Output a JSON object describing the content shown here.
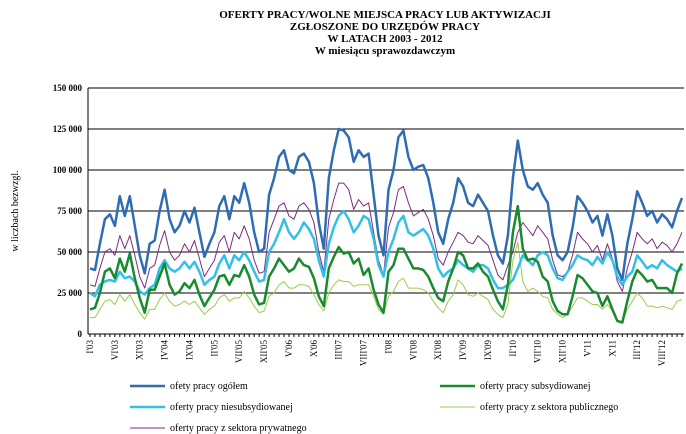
{
  "chart_data": {
    "type": "line",
    "title": [
      "OFERTY PRACY/WOLNE MIEJSCA PRACY LUB AKTYWIZACJI",
      "ZGŁOSZONE DO URZĘDÓW PRACY",
      "W LATACH 2003 - 2012",
      "W miesiącu sprawozdawczym"
    ],
    "y_label": "w liczbach bezwzgl.",
    "ylim": [
      0,
      150000
    ],
    "yticks": [
      0,
      {
        "value": 25000,
        "label": "25 000"
      },
      {
        "value": 50000,
        "label": "50 000"
      },
      {
        "value": 75000,
        "label": "75 000"
      },
      {
        "value": 100000,
        "label": "100 000"
      },
      {
        "value": 125000,
        "label": "125 000"
      },
      {
        "value": 150000,
        "label": "150 000"
      }
    ],
    "grid": true,
    "categories": [
      "I'03",
      null,
      null,
      null,
      null,
      "VI'03",
      null,
      null,
      null,
      null,
      "XI'03",
      null,
      null,
      null,
      null,
      "IV'04",
      null,
      null,
      null,
      null,
      "IX'04",
      null,
      null,
      null,
      null,
      "II'05",
      null,
      null,
      null,
      null,
      "VII'05",
      null,
      null,
      null,
      null,
      "XII'05",
      null,
      null,
      null,
      null,
      "V'06",
      null,
      null,
      null,
      null,
      "X'06",
      null,
      null,
      null,
      null,
      "III'07",
      null,
      null,
      null,
      null,
      "VIII'07",
      null,
      null,
      null,
      null,
      "I'08",
      null,
      null,
      null,
      null,
      "VI'08",
      null,
      null,
      null,
      null,
      "XI'08",
      null,
      null,
      null,
      null,
      "IV'09",
      null,
      null,
      null,
      null,
      "IX'09",
      null,
      null,
      null,
      null,
      "II'10",
      null,
      null,
      null,
      null,
      "VII'10",
      null,
      null,
      null,
      null,
      "XII'10",
      null,
      null,
      null,
      null,
      "V'11",
      null,
      null,
      null,
      null,
      "X'11",
      null,
      null,
      null,
      null,
      "III'12",
      null,
      null,
      null,
      null,
      "VIII'12",
      null,
      null,
      null,
      null
    ],
    "series": [
      {
        "name": "ofety pracy ogółem",
        "color": "#2e6db4",
        "width": 2.5,
        "values": [
          40000,
          39000,
          55000,
          70000,
          73000,
          66000,
          84000,
          72000,
          84000,
          66000,
          48000,
          37000,
          55000,
          57000,
          75000,
          88000,
          70000,
          62000,
          66000,
          75000,
          68000,
          77000,
          62000,
          47000,
          55000,
          62000,
          78000,
          84000,
          70000,
          84000,
          80000,
          92000,
          80000,
          62000,
          50000,
          52000,
          85000,
          95000,
          108000,
          112000,
          100000,
          98000,
          108000,
          110000,
          105000,
          92000,
          68000,
          52000,
          95000,
          112000,
          125000,
          124000,
          120000,
          105000,
          112000,
          108000,
          110000,
          85000,
          60000,
          48000,
          88000,
          100000,
          120000,
          124000,
          108000,
          100000,
          102000,
          103000,
          95000,
          80000,
          62000,
          55000,
          70000,
          80000,
          95000,
          90000,
          80000,
          78000,
          85000,
          80000,
          75000,
          60000,
          48000,
          43000,
          60000,
          95000,
          118000,
          100000,
          90000,
          88000,
          92000,
          85000,
          80000,
          60000,
          48000,
          45000,
          50000,
          65000,
          84000,
          80000,
          75000,
          68000,
          72000,
          60000,
          73000,
          60000,
          40000,
          33000,
          55000,
          70000,
          87000,
          80000,
          72000,
          75000,
          68000,
          73000,
          70000,
          65000,
          75000,
          83000
        ]
      },
      {
        "name": "oferty pracy subsydiowanej",
        "color": "#1a8a2e",
        "width": 2.5,
        "values": [
          15000,
          16000,
          25000,
          38000,
          40000,
          34000,
          46000,
          38000,
          49000,
          34000,
          22000,
          13000,
          27000,
          27000,
          35000,
          43000,
          30000,
          24000,
          26000,
          31000,
          28000,
          33000,
          24000,
          17000,
          22000,
          27000,
          35000,
          36000,
          30000,
          36000,
          35000,
          42000,
          35000,
          24000,
          18000,
          19000,
          35000,
          40000,
          46000,
          42000,
          38000,
          40000,
          46000,
          42000,
          41000,
          34000,
          23000,
          17000,
          40000,
          47000,
          53000,
          49000,
          50000,
          43000,
          46000,
          36000,
          40000,
          27000,
          18000,
          13000,
          38000,
          42000,
          52000,
          52000,
          46000,
          40000,
          40000,
          39000,
          35000,
          28000,
          22000,
          20000,
          32000,
          40000,
          50000,
          48000,
          40000,
          40000,
          43000,
          38000,
          35000,
          27000,
          20000,
          15000,
          30000,
          62000,
          78000,
          52000,
          45000,
          46000,
          44000,
          35000,
          32000,
          20000,
          14000,
          12000,
          12000,
          23000,
          36000,
          34000,
          30000,
          26000,
          25000,
          17000,
          23000,
          15000,
          8000,
          7000,
          20000,
          32000,
          39000,
          36000,
          32000,
          33000,
          28000,
          28000,
          28000,
          25000,
          37000,
          43000
        ]
      },
      {
        "name": "oferty pracy niesubsydiowanej",
        "color": "#33c0e8",
        "width": 2.5,
        "values": [
          25000,
          23000,
          30000,
          32000,
          33000,
          32000,
          38000,
          34000,
          35000,
          32000,
          26000,
          24000,
          28000,
          30000,
          40000,
          45000,
          40000,
          38000,
          40000,
          44000,
          40000,
          44000,
          38000,
          30000,
          33000,
          35000,
          43000,
          48000,
          40000,
          48000,
          45000,
          50000,
          45000,
          38000,
          32000,
          33000,
          50000,
          55000,
          62000,
          70000,
          62000,
          58000,
          62000,
          68000,
          64000,
          58000,
          45000,
          35000,
          55000,
          65000,
          72000,
          75000,
          70000,
          62000,
          66000,
          72000,
          70000,
          58000,
          42000,
          35000,
          50000,
          58000,
          68000,
          72000,
          62000,
          60000,
          62000,
          64000,
          60000,
          52000,
          40000,
          35000,
          38000,
          40000,
          45000,
          42000,
          40000,
          38000,
          42000,
          42000,
          40000,
          33000,
          28000,
          28000,
          30000,
          33000,
          40000,
          48000,
          45000,
          42000,
          48000,
          50000,
          48000,
          40000,
          34000,
          33000,
          38000,
          42000,
          48000,
          46000,
          45000,
          42000,
          47000,
          43000,
          50000,
          45000,
          35000,
          30000,
          35000,
          38000,
          48000,
          44000,
          40000,
          42000,
          40000,
          45000,
          42000,
          40000,
          38000,
          40000
        ]
      },
      {
        "name": "oferty pracy z sektora publicznego",
        "color": "#9acd4c",
        "width": 1,
        "values": [
          10000,
          10000,
          15000,
          20000,
          21000,
          18000,
          24000,
          20000,
          24000,
          18000,
          13000,
          9000,
          15000,
          15000,
          21000,
          25000,
          20000,
          17000,
          18000,
          20000,
          18000,
          20000,
          16000,
          12000,
          15000,
          17000,
          22000,
          24000,
          20000,
          22000,
          22000,
          26000,
          22000,
          17000,
          13000,
          14000,
          23000,
          25000,
          30000,
          32000,
          28000,
          28000,
          30000,
          30000,
          29000,
          24000,
          18000,
          14000,
          25000,
          30000,
          33000,
          32000,
          32000,
          29000,
          30000,
          30000,
          30000,
          23000,
          15000,
          12000,
          23000,
          26000,
          32000,
          34000,
          28000,
          28000,
          28000,
          27000,
          25000,
          20000,
          16000,
          13000,
          20000,
          24000,
          33000,
          30000,
          24000,
          23000,
          25000,
          23000,
          21000,
          15000,
          12000,
          10000,
          18000,
          45000,
          56000,
          32000,
          26000,
          28000,
          26000,
          23000,
          22000,
          15000,
          12000,
          10000,
          12000,
          17000,
          22000,
          22000,
          20000,
          18000,
          18000,
          15000,
          18000,
          14000,
          8000,
          7000,
          15000,
          20000,
          25000,
          22000,
          17000,
          17000,
          16000,
          17000,
          16000,
          15000,
          20000,
          21000
        ]
      },
      {
        "name": "oferty pracy z sektora prywatnego",
        "color": "#7b2c7f",
        "width": 1,
        "values": [
          30000,
          29000,
          40000,
          50000,
          52000,
          48000,
          60000,
          52000,
          60000,
          48000,
          35000,
          28000,
          40000,
          42000,
          54000,
          63000,
          50000,
          45000,
          48000,
          55000,
          50000,
          57000,
          46000,
          35000,
          40000,
          45000,
          56000,
          60000,
          50000,
          62000,
          58000,
          66000,
          58000,
          45000,
          37000,
          38000,
          62000,
          70000,
          78000,
          80000,
          72000,
          70000,
          78000,
          80000,
          76000,
          68000,
          50000,
          38000,
          70000,
          82000,
          92000,
          92000,
          88000,
          76000,
          82000,
          78000,
          80000,
          62000,
          45000,
          36000,
          65000,
          74000,
          88000,
          90000,
          80000,
          72000,
          74000,
          76000,
          70000,
          60000,
          46000,
          42000,
          50000,
          56000,
          62000,
          60000,
          56000,
          55000,
          60000,
          57000,
          54000,
          45000,
          36000,
          33000,
          42000,
          50000,
          62000,
          68000,
          64000,
          60000,
          66000,
          62000,
          58000,
          45000,
          36000,
          35000,
          38000,
          48000,
          62000,
          58000,
          55000,
          50000,
          54000,
          45000,
          55000,
          46000,
          32000,
          26000,
          40000,
          50000,
          62000,
          58000,
          55000,
          58000,
          52000,
          56000,
          54000,
          50000,
          55000,
          62000
        ]
      }
    ]
  }
}
